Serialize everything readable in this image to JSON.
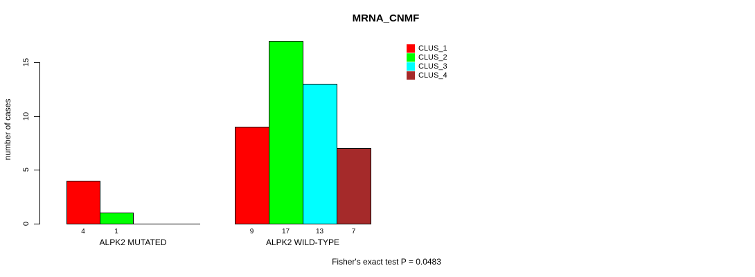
{
  "chart_data": {
    "type": "bar",
    "title": "MRNA_CNMF",
    "xlabel": "",
    "ylabel": "number of cases",
    "yticks": [
      0,
      5,
      10,
      15
    ],
    "ylim": [
      0,
      17
    ],
    "grid": false,
    "series": [
      "CLUS_1",
      "CLUS_2",
      "CLUS_3",
      "CLUS_4"
    ],
    "series_colors": [
      "#FF0000",
      "#00FF00",
      "#00FFFF",
      "#A52A2A"
    ],
    "bar_outline_color": "#000000",
    "groups": [
      {
        "label": "ALPK2 MUTATED",
        "values": [
          4,
          1,
          0,
          0
        ]
      },
      {
        "label": "ALPK2 WILD-TYPE",
        "values": [
          9,
          17,
          13,
          7
        ]
      }
    ],
    "legend": {
      "position": "top-right",
      "entries": [
        {
          "label": "CLUS_1",
          "color": "#FF0000"
        },
        {
          "label": "CLUS_2",
          "color": "#00FF00"
        },
        {
          "label": "CLUS_3",
          "color": "#00FFFF"
        },
        {
          "label": "CLUS_4",
          "color": "#A52A2A"
        }
      ]
    },
    "annotation": "Fisher's exact test P = 0.0483"
  }
}
